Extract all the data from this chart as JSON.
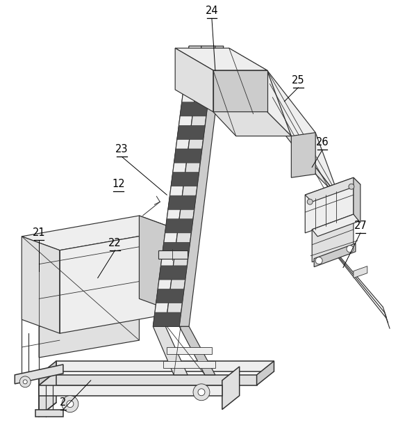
{
  "background_color": "#ffffff",
  "lc": "#303030",
  "lc_mid": "#555555",
  "lc_light": "#888888",
  "lw": 1.1,
  "lw_t": 0.6,
  "lw_m": 0.85,
  "fill_very_light": "#eeeeee",
  "fill_light": "#e0e0e0",
  "fill_mid": "#cccccc",
  "fill_white": "#f8f8f8",
  "figsize": [
    5.73,
    6.21
  ],
  "dpi": 100
}
